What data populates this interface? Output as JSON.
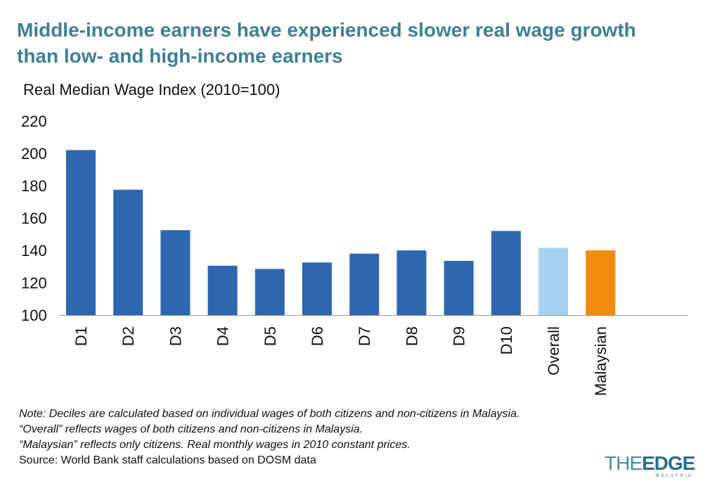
{
  "title": "Middle-income earners have experienced slower real wage growth than low- and high-income earners",
  "chart_data": {
    "type": "bar",
    "ylabel": "Real Median Wage Index (2010=100)",
    "ylim": [
      100,
      220
    ],
    "yticks": [
      100,
      120,
      140,
      160,
      180,
      200,
      220
    ],
    "grid": false,
    "categories": [
      "D1",
      "D2",
      "D3",
      "D4",
      "D5",
      "D6",
      "D7",
      "D8",
      "D9",
      "D10",
      "Overall",
      "Malaysian"
    ],
    "values": [
      202,
      177.5,
      152.5,
      130.5,
      128.5,
      132.5,
      138,
      140,
      133.5,
      152,
      141.5,
      140
    ],
    "colors": [
      "#2e66b0",
      "#2e66b0",
      "#2e66b0",
      "#2e66b0",
      "#2e66b0",
      "#2e66b0",
      "#2e66b0",
      "#2e66b0",
      "#2e66b0",
      "#2e66b0",
      "#a6d1ef",
      "#f28c0c"
    ]
  },
  "notes": {
    "line1": "Note: Deciles are calculated based on individual wages of both citizens and non-citizens in Malaysia.",
    "line2": "“Overall” reflects wages of both citizens and non-citizens in Malaysia.",
    "line3": "“Malaysian” reflects only citizens. Real monthly wages in 2010 constant prices.",
    "source": "Source: World Bank staff calculations based on DOSM data"
  },
  "logo": {
    "the": "THE",
    "edge": "EDGE",
    "sub": "MALAYSIA"
  }
}
